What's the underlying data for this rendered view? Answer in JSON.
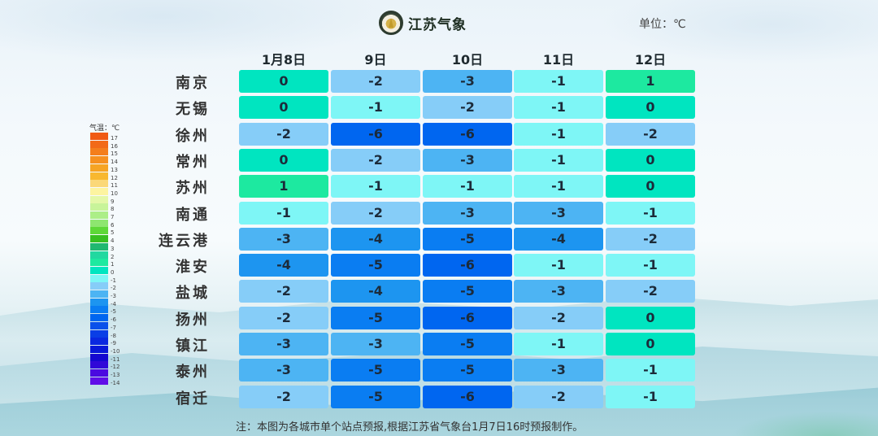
{
  "header": {
    "brand": "江苏气象",
    "unit_label": "单位：℃",
    "logo_icon": "jiangsu-meteorology-emblem"
  },
  "columns": [
    "1月8日",
    "9日",
    "10日",
    "11日",
    "12日"
  ],
  "rows": [
    {
      "city": "南京",
      "values": [
        0,
        -2,
        -3,
        -1,
        1
      ]
    },
    {
      "city": "无锡",
      "values": [
        0,
        -1,
        -2,
        -1,
        0
      ]
    },
    {
      "city": "徐州",
      "values": [
        -2,
        -6,
        -6,
        -1,
        -2
      ]
    },
    {
      "city": "常州",
      "values": [
        0,
        -2,
        -3,
        -1,
        0
      ]
    },
    {
      "city": "苏州",
      "values": [
        1,
        -1,
        -1,
        -1,
        0
      ]
    },
    {
      "city": "南通",
      "values": [
        -1,
        -2,
        -3,
        -3,
        -1
      ]
    },
    {
      "city": "连云港",
      "values": [
        -3,
        -4,
        -5,
        -4,
        -2
      ]
    },
    {
      "city": "淮安",
      "values": [
        -4,
        -5,
        -6,
        -1,
        -1
      ]
    },
    {
      "city": "盐城",
      "values": [
        -2,
        -4,
        -5,
        -3,
        -2
      ]
    },
    {
      "city": "扬州",
      "values": [
        -2,
        -5,
        -6,
        -2,
        0
      ]
    },
    {
      "city": "镇江",
      "values": [
        -3,
        -3,
        -5,
        -1,
        0
      ]
    },
    {
      "city": "泰州",
      "values": [
        -3,
        -5,
        -5,
        -3,
        -1
      ]
    },
    {
      "city": "宿迁",
      "values": [
        -2,
        -5,
        -6,
        -2,
        -1
      ]
    }
  ],
  "legend": {
    "title": "气温：℃",
    "entries": [
      {
        "value": 17,
        "color": "#f05a14"
      },
      {
        "value": 16,
        "color": "#f26a18"
      },
      {
        "value": 15,
        "color": "#f47e1c"
      },
      {
        "value": 14,
        "color": "#f69020"
      },
      {
        "value": 13,
        "color": "#f6a424"
      },
      {
        "value": 12,
        "color": "#f8b830"
      },
      {
        "value": 11,
        "color": "#fbd878"
      },
      {
        "value": 10,
        "color": "#fdf4a0"
      },
      {
        "value": 9,
        "color": "#e4f8a8"
      },
      {
        "value": 8,
        "color": "#c8f49a"
      },
      {
        "value": 7,
        "color": "#acee88"
      },
      {
        "value": 6,
        "color": "#8ee670"
      },
      {
        "value": 5,
        "color": "#5ed838"
      },
      {
        "value": 4,
        "color": "#38c020"
      },
      {
        "value": 3,
        "color": "#20b870"
      },
      {
        "value": 2,
        "color": "#22d8a0"
      },
      {
        "value": 1,
        "color": "#1de9a0"
      },
      {
        "value": 0,
        "color": "#00e5c0"
      },
      {
        "value": -1,
        "color": "#7ef6f6"
      },
      {
        "value": -2,
        "color": "#86cdf8"
      },
      {
        "value": -3,
        "color": "#4db4f3"
      },
      {
        "value": -4,
        "color": "#1d95f0"
      },
      {
        "value": -5,
        "color": "#0a7df2"
      },
      {
        "value": -6,
        "color": "#0066f0"
      },
      {
        "value": -7,
        "color": "#0a50ea"
      },
      {
        "value": -8,
        "color": "#0a3ee6"
      },
      {
        "value": -9,
        "color": "#0a28e0"
      },
      {
        "value": -10,
        "color": "#0818d8"
      },
      {
        "value": -11,
        "color": "#1408d0"
      },
      {
        "value": -12,
        "color": "#3008d8"
      },
      {
        "value": -13,
        "color": "#4a0ae0"
      },
      {
        "value": -14,
        "color": "#600ee8"
      }
    ]
  },
  "note": "注：本图为各城市单个站点预报,根据江苏省气象台1月7日16时预报制作。",
  "chart_data": {
    "type": "table",
    "title": "江苏各城市最低气温预报",
    "unit": "℃",
    "columns": [
      "1月8日",
      "9日",
      "10日",
      "11日",
      "12日"
    ],
    "rows": [
      "南京",
      "无锡",
      "徐州",
      "常州",
      "苏州",
      "南通",
      "连云港",
      "淮安",
      "盐城",
      "扬州",
      "镇江",
      "泰州",
      "宿迁"
    ],
    "series": [
      {
        "name": "南京",
        "values": [
          0,
          -2,
          -3,
          -1,
          1
        ]
      },
      {
        "name": "无锡",
        "values": [
          0,
          -1,
          -2,
          -1,
          0
        ]
      },
      {
        "name": "徐州",
        "values": [
          -2,
          -6,
          -6,
          -1,
          -2
        ]
      },
      {
        "name": "常州",
        "values": [
          0,
          -2,
          -3,
          -1,
          0
        ]
      },
      {
        "name": "苏州",
        "values": [
          1,
          -1,
          -1,
          -1,
          0
        ]
      },
      {
        "name": "南通",
        "values": [
          -1,
          -2,
          -3,
          -3,
          -1
        ]
      },
      {
        "name": "连云港",
        "values": [
          -3,
          -4,
          -5,
          -4,
          -2
        ]
      },
      {
        "name": "淮安",
        "values": [
          -4,
          -5,
          -6,
          -1,
          -1
        ]
      },
      {
        "name": "盐城",
        "values": [
          -2,
          -4,
          -5,
          -3,
          -2
        ]
      },
      {
        "name": "扬州",
        "values": [
          -2,
          -5,
          -6,
          -2,
          0
        ]
      },
      {
        "name": "镇江",
        "values": [
          -3,
          -3,
          -5,
          -1,
          0
        ]
      },
      {
        "name": "泰州",
        "values": [
          -3,
          -5,
          -5,
          -3,
          -1
        ]
      },
      {
        "name": "宿迁",
        "values": [
          -2,
          -5,
          -6,
          -2,
          -1
        ]
      }
    ],
    "legend": {
      "title": "气温：℃",
      "range": [
        -14,
        17
      ],
      "position": "left"
    },
    "annotation": "注：本图为各城市单个站点预报,根据江苏省气象台1月7日16时预报制作。"
  }
}
